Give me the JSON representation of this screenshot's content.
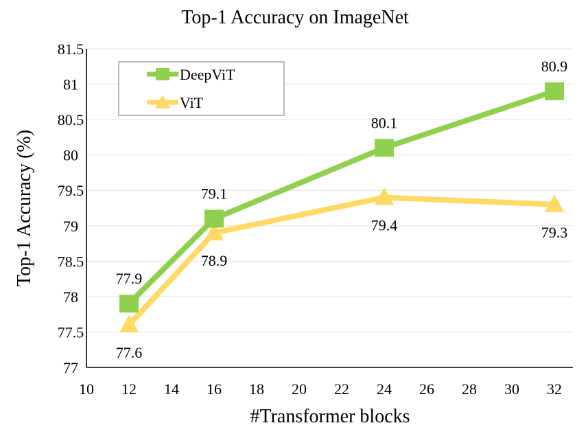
{
  "chart_data": {
    "type": "line",
    "title": "Top-1 Accuracy on ImageNet",
    "xlabel": "#Transformer blocks",
    "ylabel": "Top-1 Accuracy (%)",
    "xlim": [
      10,
      33
    ],
    "ylim": [
      77,
      81.5
    ],
    "xticks": [
      10,
      12,
      14,
      16,
      18,
      20,
      22,
      24,
      26,
      28,
      30,
      32
    ],
    "yticks": [
      77,
      77.5,
      78,
      78.5,
      79,
      79.5,
      80,
      80.5,
      81,
      81.5
    ],
    "ytick_labels": [
      "77",
      "77.5",
      "78",
      "78.5",
      "79",
      "79.5",
      "80",
      "80.5",
      "81",
      "81.5"
    ],
    "grid": "horizontal",
    "legend_position": "top-left",
    "series": [
      {
        "name": "DeepViT",
        "marker": "square",
        "color": "#8fd14f",
        "x": [
          12,
          16,
          24,
          32
        ],
        "y": [
          77.9,
          79.1,
          80.1,
          80.9
        ],
        "labels": [
          "77.9",
          "79.1",
          "80.1",
          "80.9"
        ],
        "label_position": "above"
      },
      {
        "name": "ViT",
        "marker": "triangle",
        "color": "#ffd966",
        "x": [
          12,
          16,
          24,
          32
        ],
        "y": [
          77.6,
          78.9,
          79.4,
          79.3
        ],
        "labels": [
          "77.6",
          "78.9",
          "79.4",
          "79.3"
        ],
        "label_position": "below"
      }
    ]
  }
}
